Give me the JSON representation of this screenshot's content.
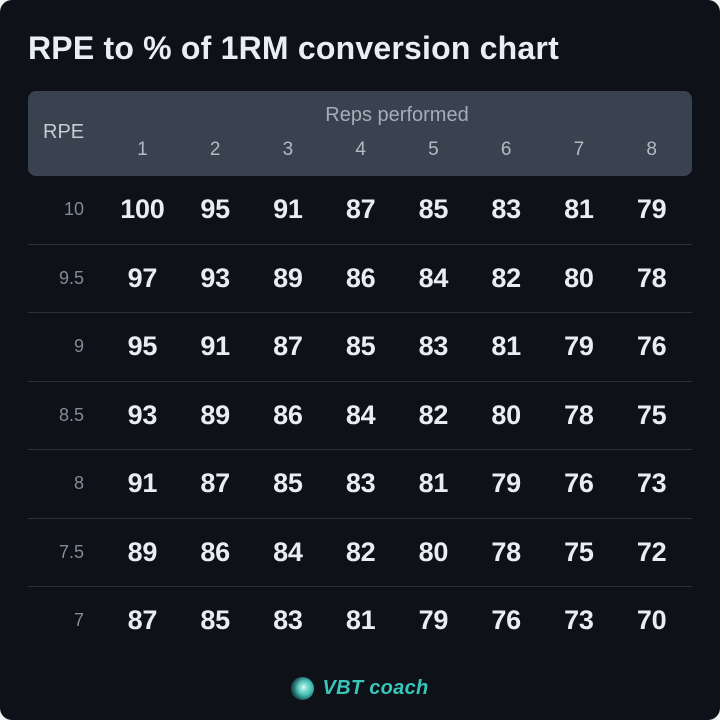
{
  "title": "RPE to % of 1RM conversion chart",
  "footer": {
    "brand": "VBT coach"
  },
  "icons": {
    "logo": "vbt-coach-sphere-logo"
  },
  "colors": {
    "background": "#0e1117",
    "header_band": "#3a4250",
    "title_text": "#e8eef4",
    "group_header_text": "#a4adb9",
    "column_header_text": "#b3bac5",
    "row_label_text": "#828a96",
    "value_text": "#e9edf2",
    "divider": "rgba(255,255,255,0.13)",
    "brand_teal": "#38c6bc"
  },
  "chart_data": {
    "type": "table",
    "title": "RPE to % of 1RM conversion chart",
    "corner_label": "RPE",
    "column_group_header": "Reps performed",
    "columns": [
      "1",
      "2",
      "3",
      "4",
      "5",
      "6",
      "7",
      "8"
    ],
    "rows": [
      {
        "label": "10",
        "values": [
          100,
          95,
          91,
          87,
          85,
          83,
          81,
          79
        ]
      },
      {
        "label": "9.5",
        "values": [
          97,
          93,
          89,
          86,
          84,
          82,
          80,
          78
        ]
      },
      {
        "label": "9",
        "values": [
          95,
          91,
          87,
          85,
          83,
          81,
          79,
          76
        ]
      },
      {
        "label": "8.5",
        "values": [
          93,
          89,
          86,
          84,
          82,
          80,
          78,
          75
        ]
      },
      {
        "label": "8",
        "values": [
          91,
          87,
          85,
          83,
          81,
          79,
          76,
          73
        ]
      },
      {
        "label": "7.5",
        "values": [
          89,
          86,
          84,
          82,
          80,
          78,
          75,
          72
        ]
      },
      {
        "label": "7",
        "values": [
          87,
          85,
          83,
          81,
          79,
          76,
          73,
          70
        ]
      }
    ]
  }
}
